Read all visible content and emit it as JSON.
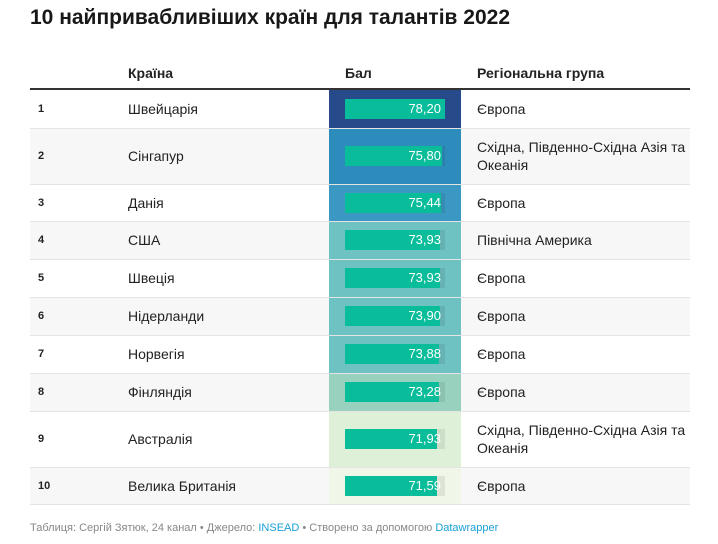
{
  "title": "10 найпривабливіших країн для талантів 2022",
  "headers": {
    "country": "Країна",
    "score": "Бал",
    "region": "Регіональна група"
  },
  "rows": [
    {
      "rank": "1",
      "country": "Швейцарія",
      "score": "78,20",
      "value": 78.2,
      "region": "Європа",
      "color": "#264a8a"
    },
    {
      "rank": "2",
      "country": "Сінгапур",
      "score": "75,80",
      "value": 75.8,
      "region": "Східна, Південно-Східна Азія та Океанія",
      "color": "#2e8cbd"
    },
    {
      "rank": "3",
      "country": "Данія",
      "score": "75,44",
      "value": 75.44,
      "region": "Європа",
      "color": "#3b98c3"
    },
    {
      "rank": "4",
      "country": "США",
      "score": "73,93",
      "value": 73.93,
      "region": "Північна Америка",
      "color": "#6fc2c2"
    },
    {
      "rank": "5",
      "country": "Швеція",
      "score": "73,93",
      "value": 73.93,
      "region": "Європа",
      "color": "#6fc2c2"
    },
    {
      "rank": "6",
      "country": "Нідерланди",
      "score": "73,90",
      "value": 73.9,
      "region": "Європа",
      "color": "#6fc2c2"
    },
    {
      "rank": "7",
      "country": "Норвегія",
      "score": "73,88",
      "value": 73.88,
      "region": "Європа",
      "color": "#6fc2c2"
    },
    {
      "rank": "8",
      "country": "Фінляндія",
      "score": "73,28",
      "value": 73.28,
      "region": "Європа",
      "color": "#98d2bf"
    },
    {
      "rank": "9",
      "country": "Австралія",
      "score": "71,93",
      "value": 71.93,
      "region": "Східна, Південно-Східна Азія та Океанія",
      "color": "#dff0d8"
    },
    {
      "rank": "10",
      "country": "Велика Британія",
      "score": "71,59",
      "value": 71.59,
      "region": "Європа",
      "color": "#f0f7e8"
    }
  ],
  "footer": {
    "table": "Таблиця: Сергій Зятюк, 24 канал",
    "sep": " • ",
    "source_label": "Джерело: ",
    "source": "INSEAD",
    "made_with": "Створено за допомогою ",
    "tool": "Datawrapper"
  }
}
